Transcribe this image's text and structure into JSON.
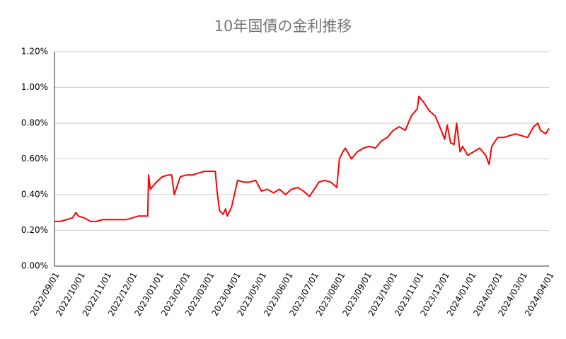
{
  "chart_data": {
    "type": "line",
    "title": "10年国債の金利推移",
    "color": "#ff0000",
    "grid": true,
    "x": [
      "2022/09/01",
      "2022/09/08",
      "2022/09/15",
      "2022/09/22",
      "2022/09/26",
      "2022/09/29",
      "2022/10/06",
      "2022/10/13",
      "2022/10/20",
      "2022/10/27",
      "2022/11/03",
      "2022/11/10",
      "2022/11/17",
      "2022/11/24",
      "2022/12/01",
      "2022/12/08",
      "2022/12/15",
      "2022/12/19",
      "2022/12/20",
      "2022/12/22",
      "2022/12/29",
      "2023/01/05",
      "2023/01/12",
      "2023/01/16",
      "2023/01/19",
      "2023/01/26",
      "2023/02/02",
      "2023/02/09",
      "2023/02/16",
      "2023/02/23",
      "2023/03/02",
      "2023/03/08",
      "2023/03/10",
      "2023/03/13",
      "2023/03/17",
      "2023/03/20",
      "2023/03/22",
      "2023/03/27",
      "2023/04/03",
      "2023/04/10",
      "2023/04/17",
      "2023/04/24",
      "2023/05/01",
      "2023/05/08",
      "2023/05/15",
      "2023/05/22",
      "2023/05/29",
      "2023/06/05",
      "2023/06/12",
      "2023/06/19",
      "2023/06/26",
      "2023/07/03",
      "2023/07/07",
      "2023/07/14",
      "2023/07/21",
      "2023/07/28",
      "2023/07/31",
      "2023/08/04",
      "2023/08/07",
      "2023/08/14",
      "2023/08/21",
      "2023/08/28",
      "2023/09/04",
      "2023/09/11",
      "2023/09/18",
      "2023/09/25",
      "2023/10/02",
      "2023/10/09",
      "2023/10/16",
      "2023/10/23",
      "2023/10/30",
      "2023/11/01",
      "2023/11/06",
      "2023/11/13",
      "2023/11/20",
      "2023/11/27",
      "2023/12/01",
      "2023/12/04",
      "2023/12/08",
      "2023/12/12",
      "2023/12/15",
      "2023/12/19",
      "2023/12/22",
      "2023/12/28",
      "2024/01/04",
      "2024/01/11",
      "2024/01/18",
      "2024/01/22",
      "2024/01/25",
      "2024/02/01",
      "2024/02/08",
      "2024/02/15",
      "2024/02/22",
      "2024/02/29",
      "2024/03/07",
      "2024/03/14",
      "2024/03/19",
      "2024/03/22",
      "2024/03/28",
      "2024/04/01"
    ],
    "values": [
      0.25,
      0.25,
      0.26,
      0.27,
      0.3,
      0.28,
      0.27,
      0.25,
      0.25,
      0.26,
      0.26,
      0.26,
      0.26,
      0.26,
      0.27,
      0.28,
      0.28,
      0.28,
      0.51,
      0.43,
      0.47,
      0.5,
      0.51,
      0.51,
      0.4,
      0.5,
      0.51,
      0.51,
      0.52,
      0.53,
      0.53,
      0.53,
      0.42,
      0.31,
      0.29,
      0.32,
      0.28,
      0.33,
      0.48,
      0.47,
      0.47,
      0.48,
      0.42,
      0.43,
      0.41,
      0.43,
      0.4,
      0.43,
      0.44,
      0.42,
      0.39,
      0.44,
      0.47,
      0.48,
      0.47,
      0.44,
      0.6,
      0.64,
      0.66,
      0.6,
      0.64,
      0.66,
      0.67,
      0.66,
      0.7,
      0.72,
      0.76,
      0.78,
      0.76,
      0.84,
      0.88,
      0.95,
      0.92,
      0.87,
      0.84,
      0.76,
      0.71,
      0.79,
      0.69,
      0.68,
      0.8,
      0.64,
      0.67,
      0.62,
      0.64,
      0.66,
      0.62,
      0.57,
      0.67,
      0.72,
      0.72,
      0.73,
      0.74,
      0.73,
      0.72,
      0.78,
      0.8,
      0.76,
      0.74,
      0.77
    ],
    "xlim": [
      "2022/09/01",
      "2024/04/01"
    ],
    "xticks": [
      "2022/09/01",
      "2022/10/01",
      "2022/11/01",
      "2022/12/01",
      "2023/01/01",
      "2023/02/01",
      "2023/03/01",
      "2023/04/01",
      "2023/05/01",
      "2023/06/01",
      "2023/07/01",
      "2023/08/01",
      "2023/09/01",
      "2023/10/01",
      "2023/11/01",
      "2023/12/01",
      "2024/01/01",
      "2024/02/01",
      "2024/03/01",
      "2024/04/01"
    ],
    "ylim": [
      0,
      1.2
    ],
    "yticks": [
      {
        "value": 0,
        "label": "0.00%"
      },
      {
        "value": 0.2,
        "label": "0.20%"
      },
      {
        "value": 0.4,
        "label": "0.40%"
      },
      {
        "value": 0.6,
        "label": "0.60%"
      },
      {
        "value": 0.8,
        "label": "0.80%"
      },
      {
        "value": 1.0,
        "label": "1.00%"
      },
      {
        "value": 1.2,
        "label": "1.20%"
      }
    ]
  }
}
